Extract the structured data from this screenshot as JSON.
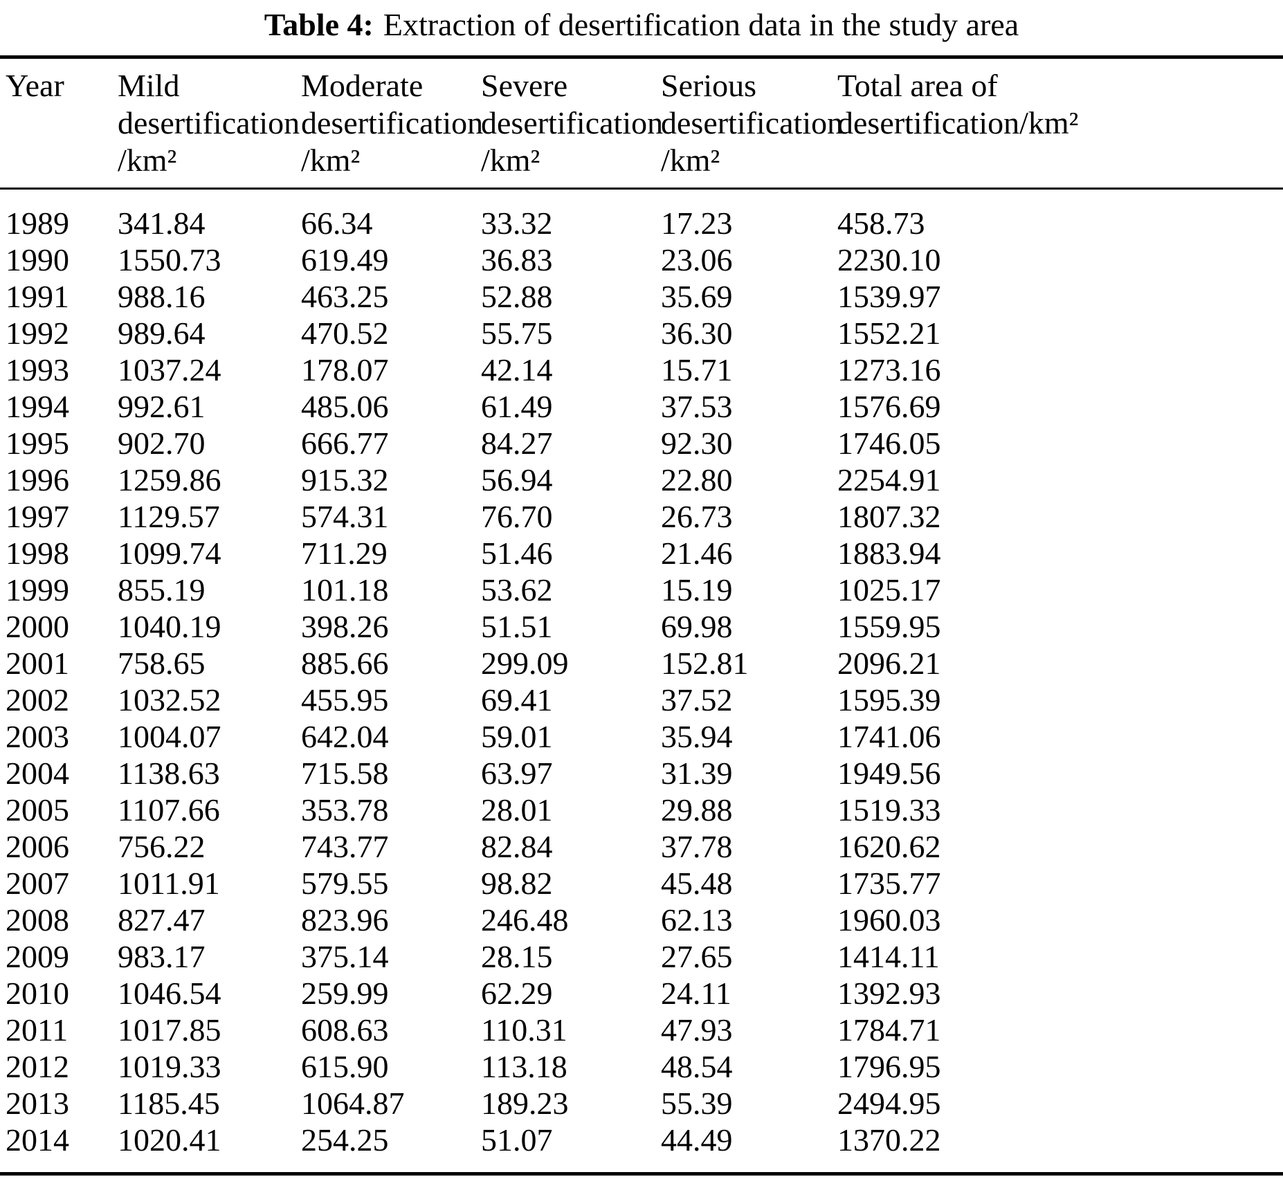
{
  "table": {
    "title_label": "Table 4:",
    "title_text": "Extraction of desertification data in the study area",
    "headers": [
      "Year",
      "Mild\ndesertification\n/km²",
      "Moderate\ndesertification\n/km²",
      "Severe\ndesertification\n/km²",
      "Serious\ndesertification\n/km²",
      "Total area of\ndesertification/km²"
    ]
  },
  "chart_data": {
    "type": "table",
    "title": "Table 4: Extraction of desertification data in the study area",
    "columns": [
      "Year",
      "Mild desertification /km²",
      "Moderate desertification /km²",
      "Severe desertification /km²",
      "Serious desertification /km²",
      "Total area of desertification/km²"
    ],
    "rows": [
      [
        "1989",
        "341.84",
        "66.34",
        "33.32",
        "17.23",
        "458.73"
      ],
      [
        "1990",
        "1550.73",
        "619.49",
        "36.83",
        "23.06",
        "2230.10"
      ],
      [
        "1991",
        "988.16",
        "463.25",
        "52.88",
        "35.69",
        "1539.97"
      ],
      [
        "1992",
        "989.64",
        "470.52",
        "55.75",
        "36.30",
        "1552.21"
      ],
      [
        "1993",
        "1037.24",
        "178.07",
        "42.14",
        "15.71",
        "1273.16"
      ],
      [
        "1994",
        "992.61",
        "485.06",
        "61.49",
        "37.53",
        "1576.69"
      ],
      [
        "1995",
        "902.70",
        "666.77",
        "84.27",
        "92.30",
        "1746.05"
      ],
      [
        "1996",
        "1259.86",
        "915.32",
        "56.94",
        "22.80",
        "2254.91"
      ],
      [
        "1997",
        "1129.57",
        "574.31",
        "76.70",
        "26.73",
        "1807.32"
      ],
      [
        "1998",
        "1099.74",
        "711.29",
        "51.46",
        "21.46",
        "1883.94"
      ],
      [
        "1999",
        "855.19",
        "101.18",
        "53.62",
        "15.19",
        "1025.17"
      ],
      [
        "2000",
        "1040.19",
        "398.26",
        "51.51",
        "69.98",
        "1559.95"
      ],
      [
        "2001",
        "758.65",
        "885.66",
        "299.09",
        "152.81",
        "2096.21"
      ],
      [
        "2002",
        "1032.52",
        "455.95",
        "69.41",
        "37.52",
        "1595.39"
      ],
      [
        "2003",
        "1004.07",
        "642.04",
        "59.01",
        "35.94",
        "1741.06"
      ],
      [
        "2004",
        "1138.63",
        "715.58",
        "63.97",
        "31.39",
        "1949.56"
      ],
      [
        "2005",
        "1107.66",
        "353.78",
        "28.01",
        "29.88",
        "1519.33"
      ],
      [
        "2006",
        "756.22",
        "743.77",
        "82.84",
        "37.78",
        "1620.62"
      ],
      [
        "2007",
        "1011.91",
        "579.55",
        "98.82",
        "45.48",
        "1735.77"
      ],
      [
        "2008",
        "827.47",
        "823.96",
        "246.48",
        "62.13",
        "1960.03"
      ],
      [
        "2009",
        "983.17",
        "375.14",
        "28.15",
        "27.65",
        "1414.11"
      ],
      [
        "2010",
        "1046.54",
        "259.99",
        "62.29",
        "24.11",
        "1392.93"
      ],
      [
        "2011",
        "1017.85",
        "608.63",
        "110.31",
        "47.93",
        "1784.71"
      ],
      [
        "2012",
        "1019.33",
        "615.90",
        "113.18",
        "48.54",
        "1796.95"
      ],
      [
        "2013",
        "1185.45",
        "1064.87",
        "189.23",
        "55.39",
        "2494.95"
      ],
      [
        "2014",
        "1020.41",
        "254.25",
        "51.07",
        "44.49",
        "1370.22"
      ]
    ]
  }
}
